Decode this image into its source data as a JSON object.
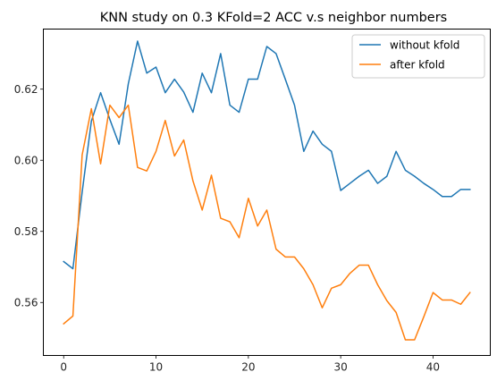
{
  "chart_data": {
    "type": "line",
    "title": "KNN study on 0.3 KFold=2 ACC v.s neighbor numbers",
    "xlabel": "",
    "ylabel": "",
    "xlim": [
      -2.2,
      46.2
    ],
    "ylim": [
      0.5451,
      0.6369
    ],
    "xticks": [
      0,
      10,
      20,
      30,
      40
    ],
    "yticks": [
      0.56,
      0.58,
      0.6,
      0.62
    ],
    "ytick_labels": [
      "0.56",
      "0.58",
      "0.60",
      "0.62"
    ],
    "grid": false,
    "legend_position": "top-right",
    "x": [
      0,
      1,
      2,
      3,
      4,
      5,
      6,
      7,
      8,
      9,
      10,
      11,
      12,
      13,
      14,
      15,
      16,
      17,
      18,
      19,
      20,
      21,
      22,
      23,
      24,
      25,
      26,
      27,
      28,
      29,
      30,
      31,
      32,
      33,
      34,
      35,
      36,
      37,
      38,
      39,
      40,
      41,
      42,
      43,
      44
    ],
    "series": [
      {
        "name": "without kfold",
        "color": "#1f77b4",
        "values": [
          0.5715,
          0.5695,
          0.591,
          0.611,
          0.619,
          0.6115,
          0.6045,
          0.6215,
          0.6335,
          0.6245,
          0.6262,
          0.619,
          0.6228,
          0.6192,
          0.6135,
          0.6245,
          0.619,
          0.63,
          0.6155,
          0.6135,
          0.6228,
          0.6228,
          0.632,
          0.63,
          0.6228,
          0.6155,
          0.6025,
          0.6082,
          0.6045,
          0.6025,
          0.5915,
          0.5935,
          0.5955,
          0.5972,
          0.5935,
          0.5955,
          0.6025,
          0.5972,
          0.5955,
          0.5935,
          0.5918,
          0.5898,
          0.5898,
          0.5918,
          0.5918
        ]
      },
      {
        "name": "after kfold",
        "color": "#ff7f0e",
        "values": [
          0.554,
          0.5562,
          0.6015,
          0.6145,
          0.599,
          0.6155,
          0.612,
          0.6155,
          0.598,
          0.597,
          0.6025,
          0.6112,
          0.6012,
          0.6057,
          0.5942,
          0.586,
          0.5958,
          0.5837,
          0.5827,
          0.5782,
          0.5893,
          0.5815,
          0.586,
          0.575,
          0.5728,
          0.5728,
          0.5695,
          0.565,
          0.5585,
          0.564,
          0.565,
          0.5682,
          0.5705,
          0.5705,
          0.565,
          0.5605,
          0.5572,
          0.5495,
          0.5495,
          0.556,
          0.5628,
          0.5607,
          0.5607,
          0.5595,
          0.5628
        ]
      }
    ]
  }
}
